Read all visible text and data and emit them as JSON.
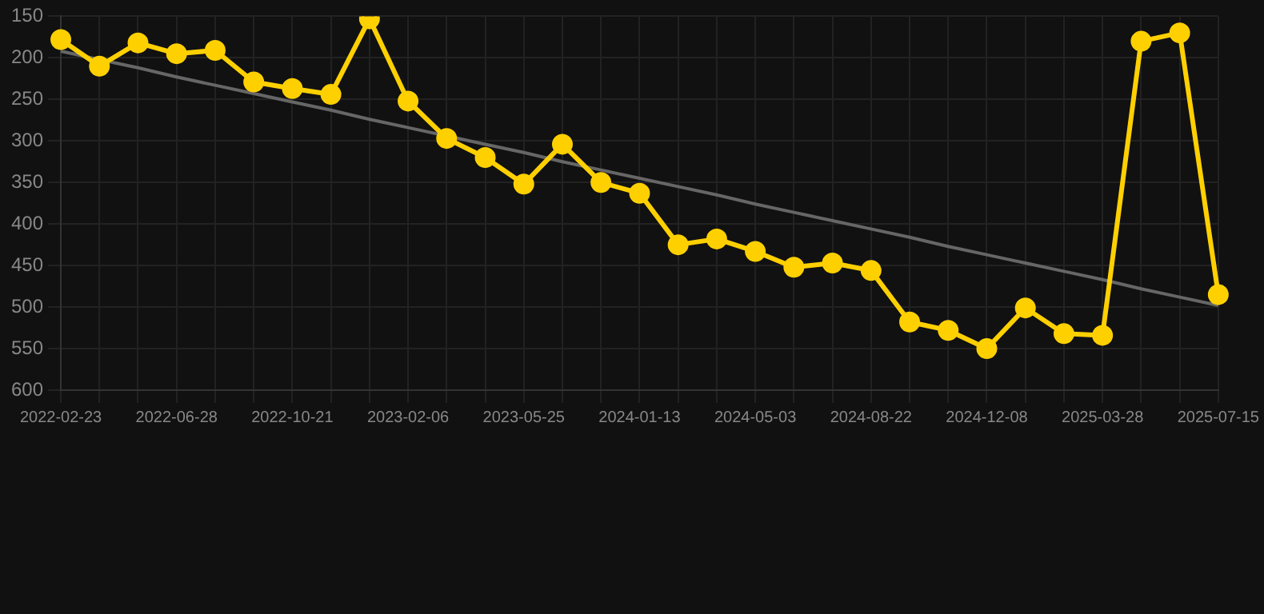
{
  "chart_data": {
    "type": "line",
    "categories": [
      "2022-02-23",
      null,
      null,
      "2022-06-28",
      null,
      null,
      "2022-10-21",
      null,
      null,
      "2023-02-06",
      null,
      null,
      "2023-05-25",
      null,
      null,
      "2024-01-13",
      null,
      null,
      "2024-05-03",
      null,
      null,
      "2024-08-22",
      null,
      null,
      "2024-12-08",
      null,
      null,
      "2025-03-28",
      null,
      null,
      "2025-07-15"
    ],
    "series": [
      {
        "color": "#ffd000",
        "marker": "circle",
        "values": [
          178,
          210,
          182,
          195,
          191,
          229,
          237,
          244,
          153,
          252,
          297,
          320,
          352,
          304,
          350,
          363,
          425,
          418,
          433,
          452,
          447,
          456,
          518,
          528,
          550,
          501,
          532,
          534,
          180,
          170,
          485
        ]
      },
      {
        "color": "#666666",
        "marker": "none",
        "values": [
          192,
          202,
          212,
          223,
          233,
          243,
          253,
          263,
          274,
          284,
          294,
          304,
          314,
          325,
          335,
          345,
          355,
          365,
          376,
          386,
          396,
          406,
          416,
          427,
          437,
          447,
          457,
          467,
          478,
          488,
          498
        ]
      }
    ],
    "ylim": [
      600,
      150
    ],
    "yticks": [
      150,
      200,
      250,
      300,
      350,
      400,
      450,
      500,
      550,
      600
    ],
    "grid": true,
    "legend": false
  }
}
